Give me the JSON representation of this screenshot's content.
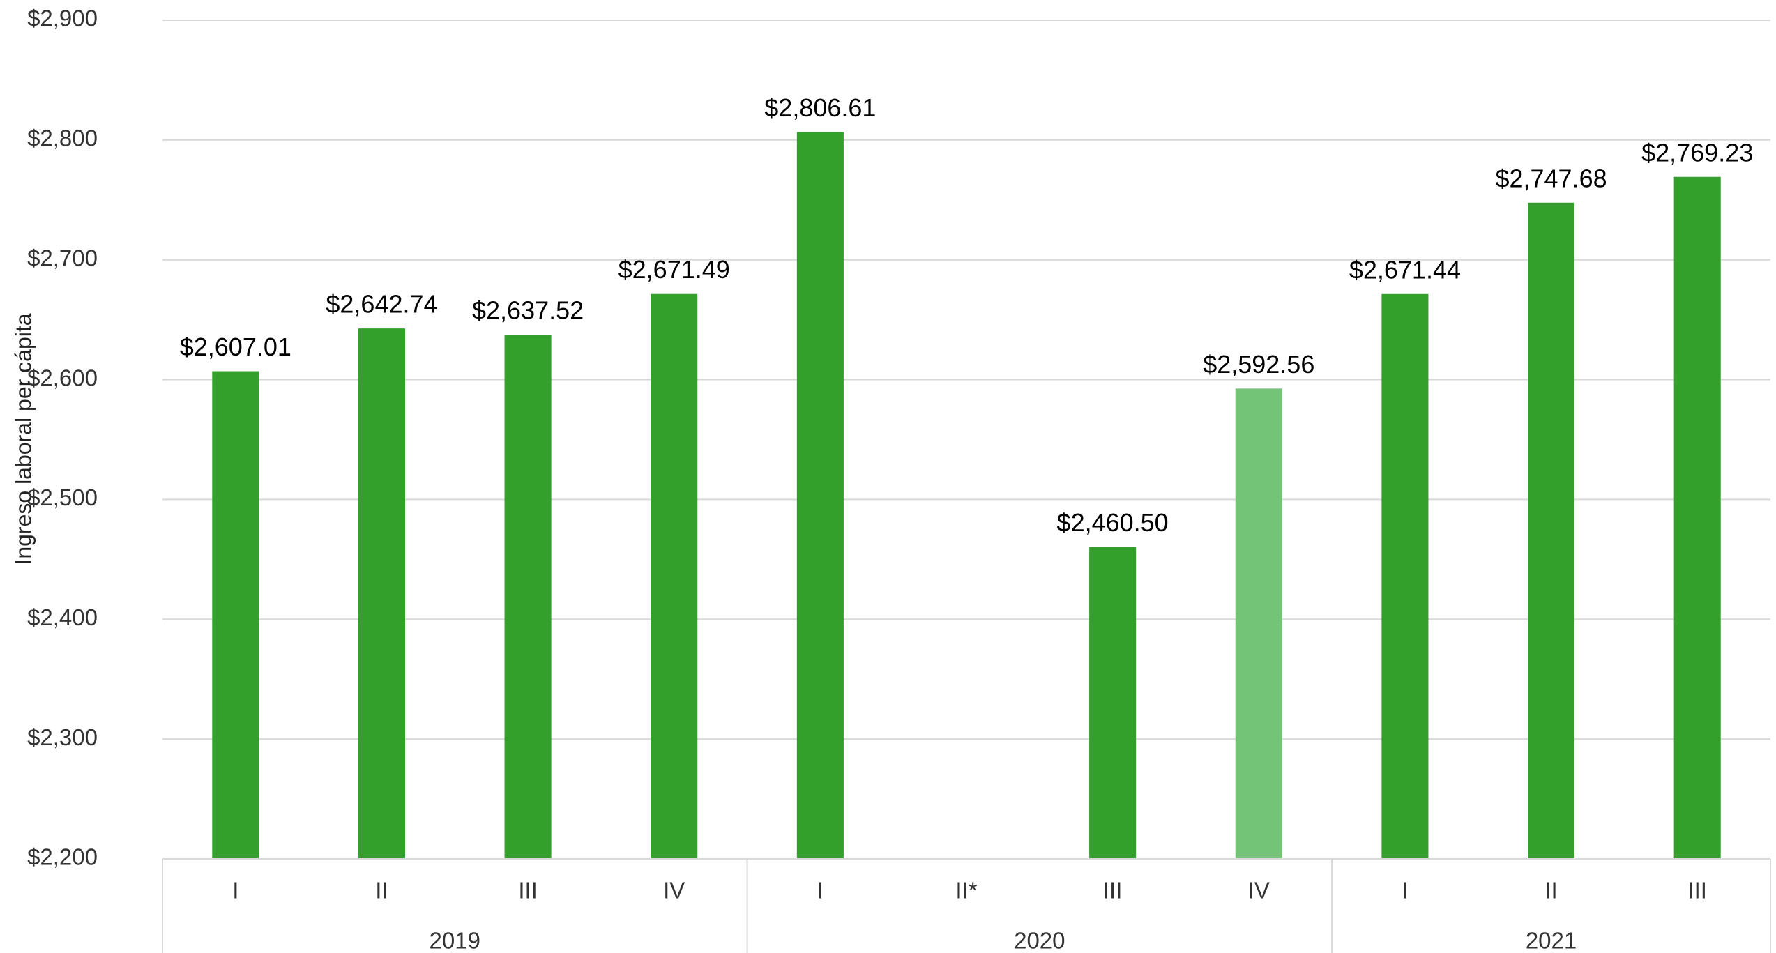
{
  "chart_data": {
    "type": "bar",
    "y_axis_label": "Ingreso laboral per cápita",
    "groups": [
      {
        "name": "2019",
        "categories": [
          "I",
          "II",
          "III",
          "IV"
        ],
        "values": [
          2607.01,
          2642.74,
          2637.52,
          2671.49
        ],
        "value_labels": [
          "$2,607.01",
          "$2,642.74",
          "$2,637.52",
          "$2,671.49"
        ],
        "colors": [
          "#33a02c",
          "#33a02c",
          "#33a02c",
          "#33a02c"
        ]
      },
      {
        "name": "2020",
        "categories": [
          "I",
          "II*",
          "III",
          "IV"
        ],
        "values": [
          2806.61,
          null,
          2460.5,
          2592.56
        ],
        "value_labels": [
          "$2,806.61",
          null,
          "$2,460.50",
          "$2,592.56"
        ],
        "colors": [
          "#33a02c",
          "#33a02c",
          "#33a02c",
          "#73c476"
        ]
      },
      {
        "name": "2021",
        "categories": [
          "I",
          "II",
          "III"
        ],
        "values": [
          2671.44,
          2747.68,
          2769.23
        ],
        "value_labels": [
          "$2,671.44",
          "$2,747.68",
          "$2,769.23"
        ],
        "colors": [
          "#33a02c",
          "#33a02c",
          "#33a02c"
        ]
      }
    ],
    "ylim": [
      2200,
      2900
    ],
    "yticks": [
      {
        "value": 2200,
        "label": "$2,200"
      },
      {
        "value": 2300,
        "label": "$2,300"
      },
      {
        "value": 2400,
        "label": "$2,400"
      },
      {
        "value": 2500,
        "label": "$2,500"
      },
      {
        "value": 2600,
        "label": "$2,600"
      },
      {
        "value": 2700,
        "label": "$2,700"
      },
      {
        "value": 2800,
        "label": "$2,800"
      },
      {
        "value": 2900,
        "label": "$2,900"
      }
    ],
    "grid": true
  }
}
